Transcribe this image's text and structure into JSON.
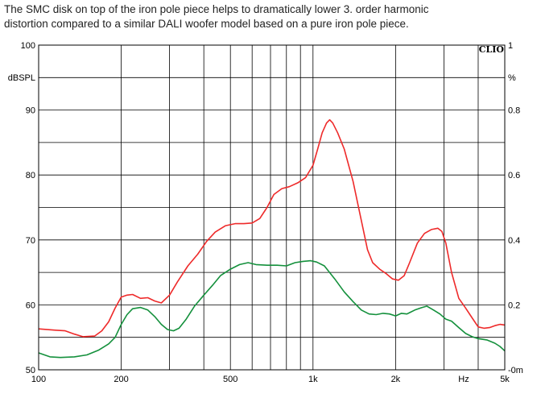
{
  "caption": {
    "line1": "The SMC disk on top of the iron pole piece helps to dramatically lower 3. order harmonic",
    "line2": "distortion compared to a similar DALI woofer model based on a pure iron pole piece."
  },
  "chart_data": {
    "type": "line",
    "brand": "CLIO",
    "x_scale": "log",
    "xlim": [
      100,
      5000
    ],
    "ylim": [
      50,
      100
    ],
    "y2lim": [
      0,
      1.0
    ],
    "ylabel": "dBSPL",
    "y2label": "%",
    "xunit": "Hz",
    "grid": true,
    "legend": "none",
    "x_ticks": [
      {
        "value": 100,
        "label": "100"
      },
      {
        "value": 200,
        "label": "200"
      },
      {
        "value": 500,
        "label": "500"
      },
      {
        "value": 1000,
        "label": "1k"
      },
      {
        "value": 2000,
        "label": "2k"
      },
      {
        "value": 5000,
        "label": "5k"
      }
    ],
    "y_ticks": [
      {
        "value": 50,
        "label": "50"
      },
      {
        "value": 60,
        "label": "60"
      },
      {
        "value": 70,
        "label": "70"
      },
      {
        "value": 80,
        "label": "80"
      },
      {
        "value": 90,
        "label": "90"
      },
      {
        "value": 100,
        "label": "100"
      }
    ],
    "y2_ticks": [
      {
        "value": 0,
        "label": "-0m"
      },
      {
        "value": 0.2,
        "label": "0.2"
      },
      {
        "value": 0.4,
        "label": "0.4"
      },
      {
        "value": 0.6,
        "label": "0.6"
      },
      {
        "value": 0.8,
        "label": "0.8"
      },
      {
        "value": 1.0,
        "label": "1"
      }
    ],
    "series": [
      {
        "color": "#ee2a2a",
        "points": [
          [
            100,
            56.3
          ],
          [
            115,
            56.1
          ],
          [
            125,
            56.0
          ],
          [
            135,
            55.5
          ],
          [
            145,
            55.1
          ],
          [
            160,
            55.2
          ],
          [
            170,
            56.0
          ],
          [
            180,
            57.4
          ],
          [
            190,
            59.5
          ],
          [
            200,
            61.2
          ],
          [
            210,
            61.5
          ],
          [
            220,
            61.6
          ],
          [
            235,
            61.0
          ],
          [
            250,
            61.1
          ],
          [
            265,
            60.6
          ],
          [
            280,
            60.3
          ],
          [
            300,
            61.5
          ],
          [
            320,
            63.5
          ],
          [
            350,
            66.0
          ],
          [
            380,
            67.8
          ],
          [
            410,
            69.8
          ],
          [
            440,
            71.2
          ],
          [
            480,
            72.2
          ],
          [
            520,
            72.5
          ],
          [
            560,
            72.5
          ],
          [
            600,
            72.6
          ],
          [
            640,
            73.3
          ],
          [
            680,
            75.0
          ],
          [
            720,
            77.0
          ],
          [
            770,
            77.9
          ],
          [
            820,
            78.2
          ],
          [
            880,
            78.8
          ],
          [
            940,
            79.6
          ],
          [
            1000,
            81.5
          ],
          [
            1040,
            84.0
          ],
          [
            1080,
            86.5
          ],
          [
            1120,
            88.0
          ],
          [
            1150,
            88.5
          ],
          [
            1180,
            88.0
          ],
          [
            1230,
            86.5
          ],
          [
            1300,
            84.0
          ],
          [
            1400,
            79.0
          ],
          [
            1500,
            73.0
          ],
          [
            1580,
            68.5
          ],
          [
            1650,
            66.5
          ],
          [
            1750,
            65.5
          ],
          [
            1850,
            64.8
          ],
          [
            1950,
            64.0
          ],
          [
            2050,
            63.8
          ],
          [
            2150,
            64.5
          ],
          [
            2250,
            66.5
          ],
          [
            2400,
            69.5
          ],
          [
            2550,
            71.0
          ],
          [
            2700,
            71.6
          ],
          [
            2850,
            71.8
          ],
          [
            2950,
            71.3
          ],
          [
            3050,
            69.5
          ],
          [
            3200,
            65.0
          ],
          [
            3400,
            61.0
          ],
          [
            3600,
            59.5
          ],
          [
            3800,
            58.0
          ],
          [
            4000,
            56.6
          ],
          [
            4200,
            56.4
          ],
          [
            4400,
            56.5
          ],
          [
            4600,
            56.8
          ],
          [
            4800,
            57.0
          ],
          [
            5000,
            56.9
          ]
        ]
      },
      {
        "color": "#14903c",
        "points": [
          [
            100,
            52.6
          ],
          [
            105,
            52.3
          ],
          [
            110,
            52.0
          ],
          [
            120,
            51.9
          ],
          [
            135,
            52.0
          ],
          [
            150,
            52.3
          ],
          [
            165,
            53.0
          ],
          [
            180,
            54.0
          ],
          [
            190,
            55.0
          ],
          [
            200,
            57.0
          ],
          [
            210,
            58.5
          ],
          [
            220,
            59.4
          ],
          [
            235,
            59.6
          ],
          [
            250,
            59.2
          ],
          [
            265,
            58.2
          ],
          [
            280,
            57.0
          ],
          [
            295,
            56.2
          ],
          [
            310,
            56.0
          ],
          [
            325,
            56.4
          ],
          [
            345,
            57.8
          ],
          [
            370,
            59.8
          ],
          [
            400,
            61.5
          ],
          [
            430,
            63.0
          ],
          [
            460,
            64.5
          ],
          [
            500,
            65.5
          ],
          [
            540,
            66.2
          ],
          [
            580,
            66.5
          ],
          [
            620,
            66.2
          ],
          [
            680,
            66.1
          ],
          [
            740,
            66.1
          ],
          [
            800,
            66.0
          ],
          [
            860,
            66.5
          ],
          [
            920,
            66.7
          ],
          [
            980,
            66.8
          ],
          [
            1030,
            66.6
          ],
          [
            1100,
            66.0
          ],
          [
            1200,
            64.0
          ],
          [
            1300,
            62.0
          ],
          [
            1400,
            60.5
          ],
          [
            1500,
            59.2
          ],
          [
            1600,
            58.6
          ],
          [
            1700,
            58.5
          ],
          [
            1800,
            58.7
          ],
          [
            1900,
            58.6
          ],
          [
            2000,
            58.3
          ],
          [
            2100,
            58.7
          ],
          [
            2200,
            58.6
          ],
          [
            2350,
            59.2
          ],
          [
            2500,
            59.6
          ],
          [
            2600,
            59.8
          ],
          [
            2750,
            59.2
          ],
          [
            2900,
            58.6
          ],
          [
            3050,
            57.8
          ],
          [
            3200,
            57.5
          ],
          [
            3400,
            56.5
          ],
          [
            3600,
            55.6
          ],
          [
            3800,
            55.1
          ],
          [
            4000,
            54.8
          ],
          [
            4300,
            54.6
          ],
          [
            4600,
            54.1
          ],
          [
            4800,
            53.6
          ],
          [
            5000,
            52.9
          ]
        ]
      }
    ]
  }
}
